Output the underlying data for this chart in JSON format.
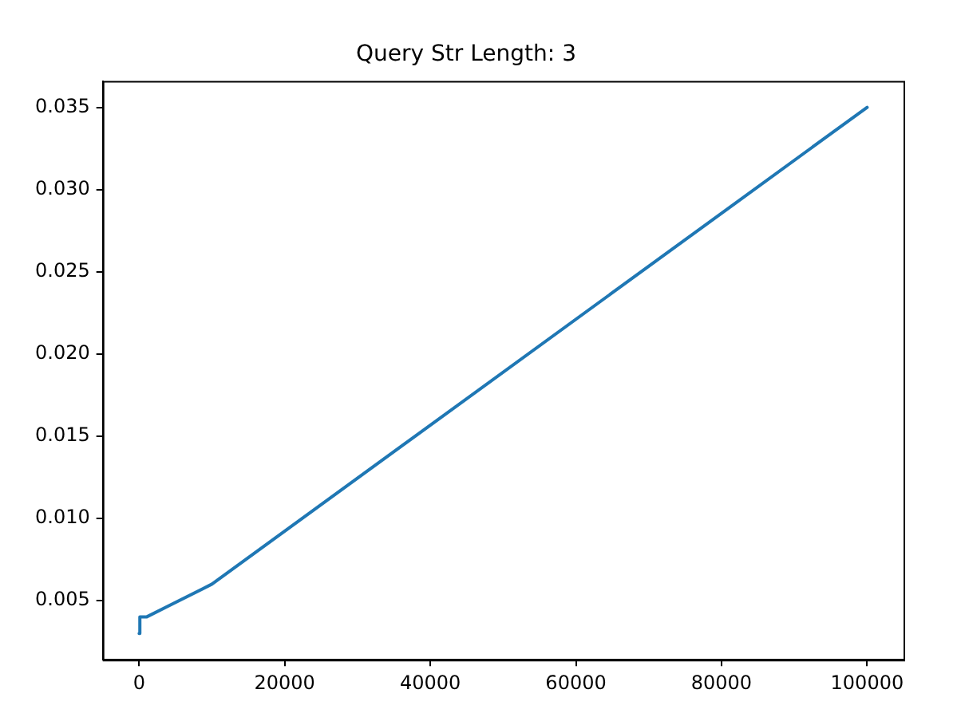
{
  "chart_data": {
    "type": "line",
    "title": "Query Str Length: 3",
    "x": [
      1,
      100,
      1000,
      10000,
      100000
    ],
    "series": [
      {
        "color": "#1f77b4",
        "values": [
          0.003,
          0.004,
          0.004,
          0.006,
          0.035
        ]
      }
    ],
    "xlim": [
      -5000,
      105000
    ],
    "xticks": [
      0,
      20000,
      40000,
      60000,
      80000,
      100000
    ],
    "ylim": [
      0.0014,
      0.0366
    ],
    "yticks": [
      0.005,
      {
        "value": 0.01,
        "label": "0.010"
      },
      0.015,
      {
        "value": 0.02,
        "label": "0.020"
      },
      0.025,
      {
        "value": 0.03,
        "label": "0.030"
      },
      0.035
    ],
    "grid": false,
    "legend": false,
    "marker": "none",
    "line_style": "solid"
  }
}
